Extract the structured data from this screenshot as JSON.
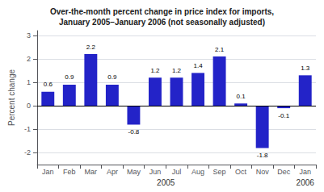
{
  "chart_data": {
    "type": "bar",
    "title": "Over-the-month percent change in price index for imports,\nJanuary 2005–January 2006 (not seasonally adjusted)",
    "categories": [
      "Jan",
      "Feb",
      "Mar",
      "Apr",
      "May",
      "Jun",
      "Jul",
      "Aug",
      "Sep",
      "Oct",
      "Nov",
      "Dec",
      "Jan"
    ],
    "values": [
      0.6,
      0.9,
      2.2,
      0.9,
      -0.8,
      1.2,
      1.2,
      1.4,
      2.1,
      0.1,
      -1.8,
      -0.1,
      1.3
    ],
    "color": "#2323c8",
    "ylabel": "Percent change",
    "ylim": [
      -2.5,
      3.2
    ],
    "yticks": [
      -2,
      -1,
      0,
      1,
      2,
      3
    ],
    "grid": true,
    "data_labels": true,
    "annotations": [
      {
        "text": "2005",
        "x": 5.5
      },
      {
        "text": "2006",
        "x": 12
      }
    ]
  }
}
